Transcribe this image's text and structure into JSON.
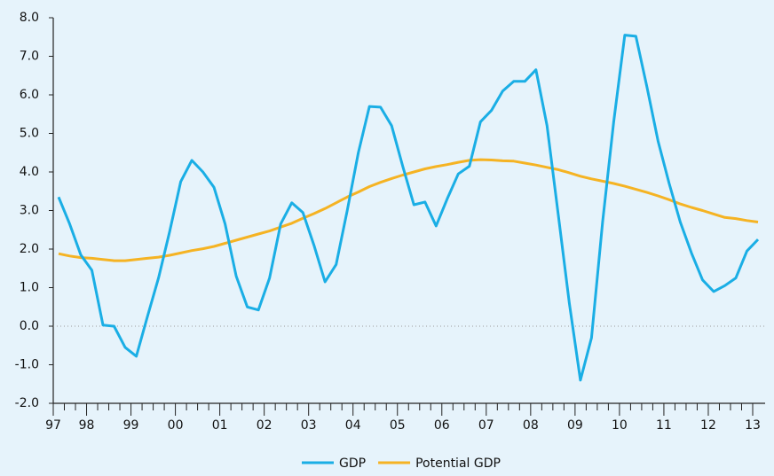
{
  "chart_data": {
    "type": "line",
    "categories": [
      "97",
      null,
      null,
      "98",
      null,
      null,
      null,
      "99",
      null,
      null,
      null,
      "00",
      null,
      null,
      null,
      "01",
      null,
      null,
      null,
      "02",
      null,
      null,
      null,
      "03",
      null,
      null,
      null,
      "04",
      null,
      null,
      null,
      "05",
      null,
      null,
      null,
      "06",
      null,
      null,
      null,
      "07",
      null,
      null,
      null,
      "08",
      null,
      null,
      null,
      "09",
      null,
      null,
      null,
      "10",
      null,
      null,
      null,
      "11",
      null,
      null,
      null,
      "12",
      null,
      null,
      null,
      "13"
    ],
    "series": [
      {
        "name": "GDP",
        "color": "#1aaee5",
        "values": [
          3.35,
          2.65,
          1.85,
          1.45,
          0.03,
          0.0,
          -0.55,
          -0.78,
          0.25,
          1.25,
          2.45,
          3.75,
          4.3,
          4.0,
          3.6,
          2.65,
          1.3,
          0.5,
          0.42,
          1.25,
          2.65,
          3.2,
          2.95,
          2.1,
          1.15,
          1.6,
          3.0,
          4.5,
          5.7,
          5.68,
          5.2,
          4.15,
          3.15,
          3.22,
          2.6,
          3.3,
          3.95,
          4.15,
          5.3,
          5.6,
          6.1,
          6.35,
          6.35,
          6.65,
          5.2,
          2.9,
          0.6,
          -1.4,
          -0.3,
          2.7,
          5.3,
          7.55,
          7.52,
          6.2,
          4.8,
          3.7,
          2.7,
          1.9,
          1.2,
          0.9,
          1.05,
          1.25,
          1.95,
          2.25
        ]
      },
      {
        "name": "Potential GDP",
        "color": "#f5b323",
        "values": [
          1.88,
          1.82,
          1.78,
          1.76,
          1.73,
          1.7,
          1.7,
          1.73,
          1.76,
          1.79,
          1.84,
          1.9,
          1.96,
          2.01,
          2.07,
          2.15,
          2.23,
          2.31,
          2.39,
          2.47,
          2.57,
          2.67,
          2.8,
          2.92,
          3.05,
          3.2,
          3.35,
          3.48,
          3.62,
          3.73,
          3.83,
          3.92,
          4.0,
          4.08,
          4.14,
          4.19,
          4.25,
          4.3,
          4.32,
          4.31,
          4.29,
          4.28,
          4.23,
          4.18,
          4.12,
          4.06,
          3.98,
          3.89,
          3.82,
          3.76,
          3.7,
          3.63,
          3.55,
          3.47,
          3.38,
          3.28,
          3.17,
          3.08,
          3.0,
          2.91,
          2.82,
          2.79,
          2.74,
          2.7
        ]
      }
    ],
    "ylim": [
      -2,
      8
    ],
    "yticks": [
      {
        "value": -2,
        "label": "-2.0"
      },
      {
        "value": -1,
        "label": "-1.0"
      },
      {
        "value": 0,
        "label": "0.0"
      },
      {
        "value": 1,
        "label": "1.0"
      },
      {
        "value": 2,
        "label": "2.0"
      },
      {
        "value": 3,
        "label": "3.0"
      },
      {
        "value": 4,
        "label": "4.0"
      },
      {
        "value": 5,
        "label": "5.0"
      },
      {
        "value": 6,
        "label": "6.0"
      },
      {
        "value": 7,
        "label": "7.0"
      },
      {
        "value": 8,
        "label": "8.0"
      }
    ],
    "zero_line": true,
    "legend": "bottom"
  }
}
